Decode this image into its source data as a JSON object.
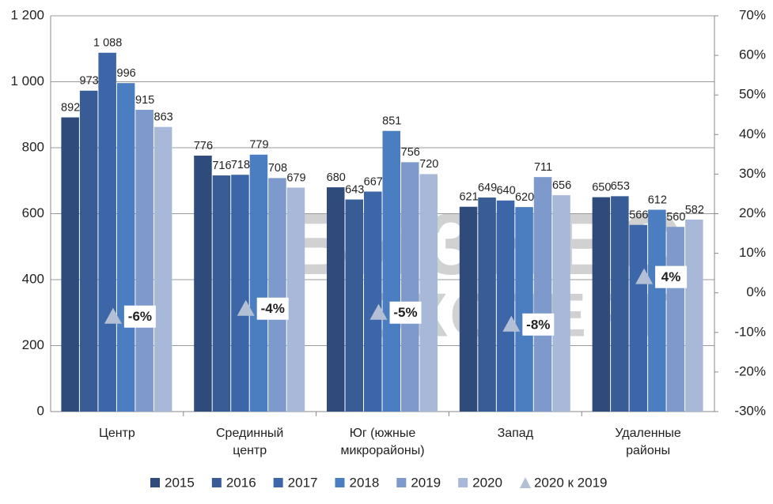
{
  "chart_data": {
    "type": "bar",
    "watermark": [
      "БИЗНЕС",
      "ЭКСПЕРТ"
    ],
    "categories": [
      "Центр",
      "Срединный центр",
      "Юг (южные микрорайоны)",
      "Запад",
      "Удаленные районы"
    ],
    "series": [
      {
        "name": "2015",
        "color": "#2f4b7c",
        "values": [
          892,
          776,
          680,
          621,
          650
        ]
      },
      {
        "name": "2016",
        "color": "#385c95",
        "values": [
          973,
          716,
          643,
          649,
          653
        ]
      },
      {
        "name": "2017",
        "color": "#3c66a8",
        "values": [
          1088,
          718,
          667,
          640,
          566
        ],
        "value_labels": [
          "1 088",
          "718",
          "667",
          "640",
          "566"
        ]
      },
      {
        "name": "2018",
        "color": "#4a7ec0",
        "values": [
          996,
          779,
          851,
          620,
          612
        ]
      },
      {
        "name": "2019",
        "color": "#7e99cb",
        "values": [
          915,
          708,
          756,
          711,
          560
        ]
      },
      {
        "name": "2020",
        "color": "#a8b8d9",
        "values": [
          863,
          679,
          720,
          656,
          582
        ]
      },
      {
        "name": "2020 к 2019",
        "color": "#b3bfd4",
        "type": "scatter",
        "axis": "y2",
        "values": [
          -6,
          -4,
          -5,
          -8,
          4
        ],
        "value_labels": [
          "-6%",
          "-4%",
          "-5%",
          "-8%",
          "4%"
        ]
      }
    ],
    "ylim": [
      0,
      1200
    ],
    "yticks": [
      0,
      200,
      400,
      600,
      800,
      {
        "value": 1000,
        "label": "1 000"
      },
      {
        "value": 1200,
        "label": "1 200"
      }
    ],
    "y2lim": [
      -30,
      70
    ],
    "y2ticks": [
      {
        "value": -30,
        "label": "-30%"
      },
      {
        "value": -20,
        "label": "-20%"
      },
      {
        "value": -10,
        "label": "-10%"
      },
      {
        "value": 0,
        "label": "0%"
      },
      {
        "value": 10,
        "label": "10%"
      },
      {
        "value": 20,
        "label": "20%"
      },
      {
        "value": 30,
        "label": "30%"
      },
      {
        "value": 40,
        "label": "40%"
      },
      {
        "value": 50,
        "label": "50%"
      },
      {
        "value": 60,
        "label": "60%"
      },
      {
        "value": 70,
        "label": "70%"
      }
    ],
    "grid": true,
    "legend": "bottom"
  }
}
